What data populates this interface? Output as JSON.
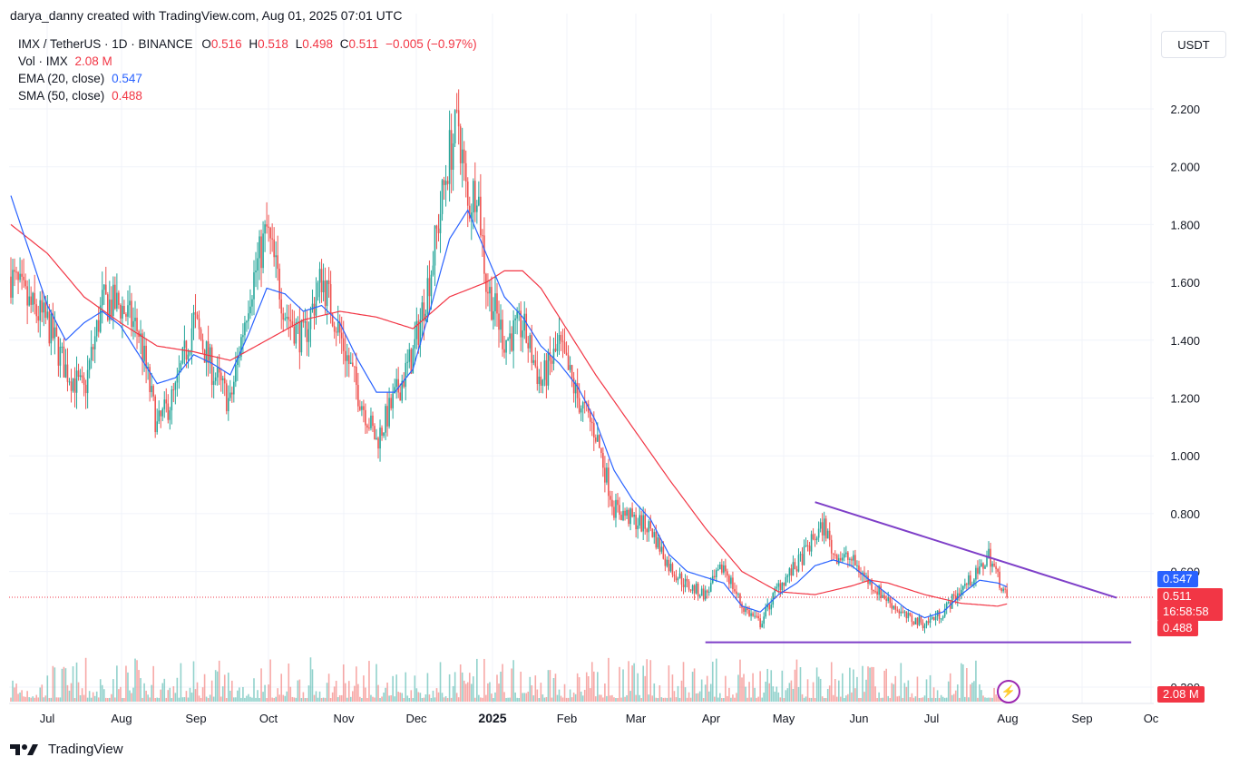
{
  "watermark": "darya_danny created with TradingView.com, Aug 01, 2025 07:01 UTC",
  "legend": {
    "symbol": "IMX / TetherUS · 1D · BINANCE",
    "o_label": "O",
    "o": "0.516",
    "h_label": "H",
    "h": "0.518",
    "l_label": "L",
    "l": "0.498",
    "c_label": "C",
    "c": "0.511",
    "change": "−0.005 (−0.97%)",
    "vol_label": "Vol · IMX",
    "vol": "2.08 M",
    "ema_label": "EMA (20, close)",
    "ema": "0.547",
    "sma_label": "SMA (50, close)",
    "sma": "0.488"
  },
  "currency_button": "USDT",
  "badges": {
    "ema": "0.547",
    "price": "0.511",
    "countdown": "16:58:58",
    "sma": "0.488",
    "volume": "2.08 M"
  },
  "brand": "TradingView",
  "colors": {
    "up": "#26a69a",
    "down": "#ef5350",
    "ema": "#2962ff",
    "sma": "#f23645",
    "trendline": "#7e3fc8",
    "price_line": "#f23645",
    "grid": "#f0f3fa"
  },
  "chart_data": {
    "type": "candlestick",
    "ylim": [
      0.2,
      2.4
    ],
    "y_ticks": [
      "2.200",
      "2.000",
      "1.800",
      "1.600",
      "1.400",
      "1.200",
      "1.000",
      "0.800",
      "0.600",
      "0.200"
    ],
    "x_ticks": [
      "Jul",
      "Aug",
      "Sep",
      "Oct",
      "Nov",
      "Dec",
      "2025",
      "Feb",
      "Mar",
      "Apr",
      "May",
      "Jun",
      "Jul",
      "Aug",
      "Sep",
      "Oc"
    ],
    "last_price": 0.511,
    "series_close": [
      [
        0,
        1.62
      ],
      [
        10,
        1.52
      ],
      [
        20,
        1.46
      ],
      [
        30,
        1.3
      ],
      [
        40,
        1.22
      ],
      [
        50,
        1.53
      ],
      [
        60,
        1.52
      ],
      [
        70,
        1.43
      ],
      [
        80,
        1.1
      ],
      [
        90,
        1.22
      ],
      [
        100,
        1.47
      ],
      [
        110,
        1.3
      ],
      [
        120,
        1.18
      ],
      [
        130,
        1.55
      ],
      [
        140,
        1.78
      ],
      [
        150,
        1.5
      ],
      [
        160,
        1.4
      ],
      [
        170,
        1.62
      ],
      [
        180,
        1.42
      ],
      [
        190,
        1.22
      ],
      [
        200,
        1.05
      ],
      [
        210,
        1.2
      ],
      [
        220,
        1.35
      ],
      [
        230,
        1.65
      ],
      [
        240,
        2.05
      ],
      [
        245,
        2.15
      ],
      [
        250,
        1.85
      ],
      [
        255,
        1.95
      ],
      [
        260,
        1.6
      ],
      [
        270,
        1.4
      ],
      [
        280,
        1.45
      ],
      [
        290,
        1.25
      ],
      [
        300,
        1.38
      ],
      [
        310,
        1.2
      ],
      [
        320,
        1.08
      ],
      [
        330,
        0.82
      ],
      [
        340,
        0.78
      ],
      [
        350,
        0.75
      ],
      [
        360,
        0.62
      ],
      [
        370,
        0.55
      ],
      [
        380,
        0.52
      ],
      [
        390,
        0.62
      ],
      [
        400,
        0.48
      ],
      [
        410,
        0.42
      ],
      [
        420,
        0.55
      ],
      [
        430,
        0.62
      ],
      [
        440,
        0.72
      ],
      [
        445,
        0.76
      ],
      [
        450,
        0.66
      ],
      [
        460,
        0.64
      ],
      [
        470,
        0.56
      ],
      [
        480,
        0.5
      ],
      [
        490,
        0.44
      ],
      [
        500,
        0.42
      ],
      [
        510,
        0.46
      ],
      [
        520,
        0.54
      ],
      [
        530,
        0.6
      ],
      [
        535,
        0.66
      ],
      [
        540,
        0.58
      ],
      [
        545,
        0.511
      ]
    ],
    "ema_20": [
      [
        0,
        1.9
      ],
      [
        20,
        1.52
      ],
      [
        30,
        1.4
      ],
      [
        40,
        1.46
      ],
      [
        50,
        1.5
      ],
      [
        60,
        1.45
      ],
      [
        70,
        1.35
      ],
      [
        80,
        1.25
      ],
      [
        90,
        1.27
      ],
      [
        100,
        1.35
      ],
      [
        110,
        1.32
      ],
      [
        120,
        1.28
      ],
      [
        130,
        1.42
      ],
      [
        140,
        1.58
      ],
      [
        150,
        1.56
      ],
      [
        160,
        1.5
      ],
      [
        170,
        1.52
      ],
      [
        180,
        1.46
      ],
      [
        190,
        1.33
      ],
      [
        200,
        1.22
      ],
      [
        210,
        1.22
      ],
      [
        220,
        1.3
      ],
      [
        230,
        1.52
      ],
      [
        240,
        1.75
      ],
      [
        250,
        1.85
      ],
      [
        260,
        1.7
      ],
      [
        270,
        1.55
      ],
      [
        280,
        1.48
      ],
      [
        290,
        1.38
      ],
      [
        300,
        1.32
      ],
      [
        310,
        1.24
      ],
      [
        320,
        1.12
      ],
      [
        330,
        0.95
      ],
      [
        340,
        0.85
      ],
      [
        350,
        0.78
      ],
      [
        360,
        0.66
      ],
      [
        370,
        0.6
      ],
      [
        380,
        0.58
      ],
      [
        390,
        0.56
      ],
      [
        400,
        0.48
      ],
      [
        410,
        0.46
      ],
      [
        420,
        0.52
      ],
      [
        430,
        0.56
      ],
      [
        440,
        0.62
      ],
      [
        450,
        0.64
      ],
      [
        460,
        0.62
      ],
      [
        470,
        0.57
      ],
      [
        480,
        0.52
      ],
      [
        490,
        0.47
      ],
      [
        500,
        0.44
      ],
      [
        510,
        0.46
      ],
      [
        520,
        0.52
      ],
      [
        530,
        0.57
      ],
      [
        540,
        0.56
      ],
      [
        545,
        0.547
      ]
    ],
    "sma_50": [
      [
        0,
        1.8
      ],
      [
        20,
        1.7
      ],
      [
        40,
        1.55
      ],
      [
        60,
        1.46
      ],
      [
        80,
        1.38
      ],
      [
        100,
        1.36
      ],
      [
        120,
        1.33
      ],
      [
        140,
        1.4
      ],
      [
        160,
        1.47
      ],
      [
        180,
        1.5
      ],
      [
        200,
        1.48
      ],
      [
        220,
        1.44
      ],
      [
        240,
        1.55
      ],
      [
        260,
        1.6
      ],
      [
        270,
        1.64
      ],
      [
        280,
        1.64
      ],
      [
        290,
        1.58
      ],
      [
        300,
        1.48
      ],
      [
        320,
        1.28
      ],
      [
        340,
        1.1
      ],
      [
        360,
        0.92
      ],
      [
        380,
        0.75
      ],
      [
        400,
        0.6
      ],
      [
        420,
        0.53
      ],
      [
        440,
        0.52
      ],
      [
        460,
        0.55
      ],
      [
        470,
        0.57
      ],
      [
        480,
        0.56
      ],
      [
        500,
        0.52
      ],
      [
        520,
        0.49
      ],
      [
        540,
        0.48
      ],
      [
        545,
        0.488
      ]
    ],
    "trendlines": [
      {
        "from": [
          440,
          0.84
        ],
        "to": [
          605,
          0.509
        ]
      },
      {
        "from": [
          380,
          0.355
        ],
        "to": [
          613,
          0.355
        ]
      }
    ]
  }
}
